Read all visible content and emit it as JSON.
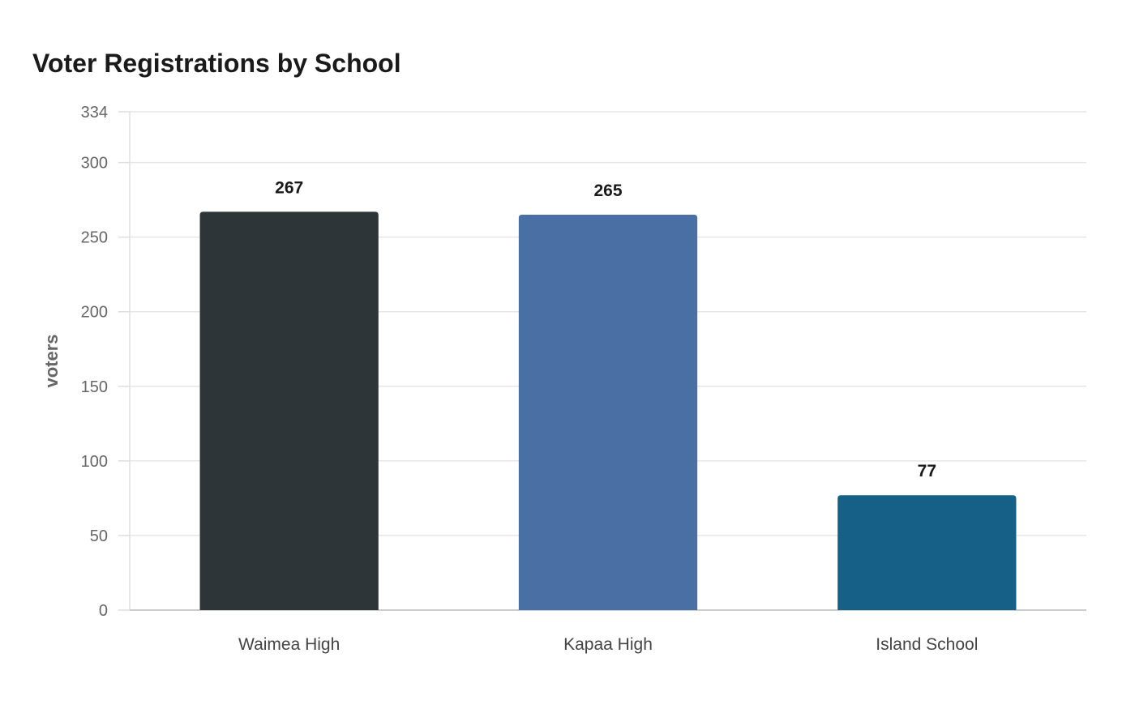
{
  "chart_data": {
    "type": "bar",
    "title": "Voter Registrations by School",
    "xlabel": "",
    "ylabel": "voters",
    "categories": [
      "Waimea High",
      "Kapaa High",
      "Island School"
    ],
    "values": [
      267,
      265,
      77
    ],
    "colors": [
      "#2e3538",
      "#4a6fa5",
      "#166088"
    ],
    "ylim": [
      0,
      334
    ],
    "yticks": [
      0,
      50,
      100,
      150,
      200,
      250,
      300,
      334
    ],
    "grid": true,
    "legend": "none"
  }
}
